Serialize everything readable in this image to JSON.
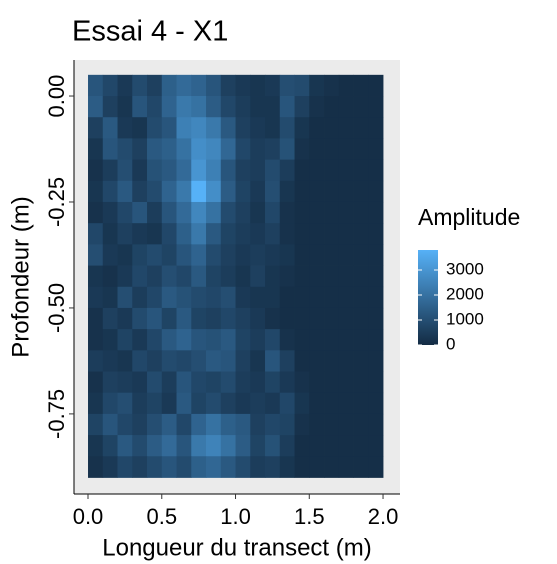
{
  "chart_data": {
    "type": "heatmap",
    "title": "Essai 4 - X1",
    "x_label": "Longueur du transect (m)",
    "y_label": "Profondeur (m)",
    "legend_title": "Amplitude",
    "x": [
      0.05,
      0.15,
      0.25,
      0.35,
      0.45,
      0.55,
      0.65,
      0.75,
      0.85,
      0.95,
      1.05,
      1.15,
      1.25,
      1.35,
      1.45,
      1.55,
      1.65,
      1.75,
      1.85,
      1.95
    ],
    "y": [
      0.025,
      -0.025,
      -0.075,
      -0.125,
      -0.175,
      -0.225,
      -0.275,
      -0.325,
      -0.375,
      -0.425,
      -0.475,
      -0.525,
      -0.575,
      -0.625,
      -0.675,
      -0.725,
      -0.775,
      -0.825,
      -0.875
    ],
    "z": [
      [
        1200,
        800,
        400,
        900,
        600,
        1500,
        1800,
        1600,
        1200,
        600,
        400,
        300,
        400,
        1000,
        900,
        300,
        200,
        100,
        100,
        100
      ],
      [
        1400,
        600,
        300,
        1200,
        800,
        1600,
        2200,
        2000,
        1400,
        800,
        500,
        300,
        300,
        1200,
        600,
        200,
        100,
        100,
        100,
        100
      ],
      [
        600,
        1300,
        400,
        300,
        900,
        1200,
        2400,
        2600,
        2200,
        1300,
        600,
        400,
        300,
        900,
        300,
        100,
        100,
        100,
        100,
        100
      ],
      [
        300,
        1200,
        900,
        600,
        1300,
        1500,
        2000,
        2800,
        2600,
        1700,
        800,
        500,
        600,
        1100,
        200,
        100,
        100,
        100,
        100,
        100
      ],
      [
        200,
        500,
        1000,
        400,
        1100,
        1300,
        1800,
        3000,
        2400,
        1200,
        600,
        500,
        900,
        500,
        100,
        100,
        100,
        100,
        100,
        100
      ],
      [
        300,
        800,
        1300,
        600,
        900,
        1600,
        2200,
        3800,
        2800,
        1400,
        700,
        400,
        1000,
        300,
        100,
        100,
        100,
        100,
        100,
        100
      ],
      [
        200,
        400,
        800,
        1200,
        500,
        1200,
        1800,
        2600,
        2000,
        900,
        600,
        300,
        800,
        200,
        100,
        100,
        100,
        100,
        100,
        100
      ],
      [
        800,
        300,
        600,
        400,
        300,
        800,
        1500,
        2200,
        1300,
        700,
        500,
        400,
        600,
        200,
        100,
        100,
        100,
        100,
        100,
        100
      ],
      [
        1000,
        400,
        300,
        700,
        900,
        700,
        1200,
        1600,
        900,
        600,
        400,
        500,
        400,
        300,
        100,
        100,
        100,
        100,
        100,
        100
      ],
      [
        300,
        200,
        400,
        800,
        600,
        1000,
        800,
        1300,
        700,
        500,
        300,
        600,
        300,
        200,
        100,
        100,
        100,
        100,
        100,
        100
      ],
      [
        400,
        300,
        1000,
        500,
        800,
        1300,
        1100,
        900,
        800,
        1000,
        400,
        300,
        300,
        100,
        100,
        100,
        100,
        100,
        100,
        100
      ],
      [
        200,
        600,
        400,
        900,
        1200,
        700,
        1300,
        700,
        600,
        800,
        600,
        400,
        200,
        100,
        100,
        100,
        100,
        100,
        100,
        100
      ],
      [
        200,
        300,
        700,
        400,
        800,
        1300,
        1600,
        1200,
        1100,
        1300,
        700,
        500,
        800,
        200,
        100,
        100,
        100,
        100,
        100,
        100
      ],
      [
        500,
        400,
        300,
        800,
        600,
        900,
        800,
        1000,
        1300,
        1200,
        600,
        300,
        1200,
        600,
        100,
        100,
        100,
        100,
        100,
        100
      ],
      [
        200,
        600,
        500,
        400,
        900,
        500,
        1200,
        800,
        700,
        900,
        500,
        400,
        700,
        400,
        200,
        100,
        100,
        100,
        100,
        100
      ],
      [
        300,
        800,
        1000,
        500,
        700,
        400,
        1300,
        700,
        900,
        600,
        400,
        500,
        400,
        800,
        300,
        100,
        100,
        100,
        100,
        100
      ],
      [
        700,
        1200,
        800,
        600,
        1000,
        1400,
        800,
        1600,
        2000,
        1500,
        1300,
        600,
        800,
        700,
        200,
        100,
        100,
        100,
        100,
        100
      ],
      [
        300,
        700,
        1300,
        900,
        1400,
        1800,
        1200,
        2200,
        2500,
        2000,
        1400,
        700,
        1100,
        500,
        100,
        100,
        100,
        100,
        100,
        100
      ],
      [
        200,
        400,
        800,
        600,
        900,
        1200,
        900,
        1500,
        1700,
        1300,
        900,
        500,
        600,
        300,
        100,
        100,
        100,
        100,
        100,
        100
      ]
    ],
    "xlim": [
      -0.095,
      2.115
    ],
    "ylim": [
      -0.939,
      0.085
    ],
    "xticks": [
      {
        "value": 0,
        "label": "0.0"
      },
      0.5,
      {
        "value": 1,
        "label": "1.0"
      },
      1.5,
      {
        "value": 2,
        "label": "2.0"
      }
    ],
    "yticks": [
      {
        "value": 0,
        "label": "0.00"
      },
      -0.25,
      {
        "value": -0.5,
        "label": "-0.50"
      },
      -0.75
    ],
    "zlim": [
      0,
      3800
    ],
    "zticks": [
      0,
      1000,
      2000,
      3000
    ],
    "colors": {
      "low": "#132B43",
      "high": "#56B1F7"
    }
  }
}
